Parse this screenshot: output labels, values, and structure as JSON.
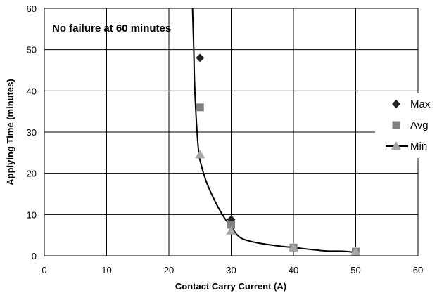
{
  "chart_data": {
    "type": "scatter",
    "xlabel": "Contact Carry Current (A)",
    "ylabel": "Applying Time (minutes)",
    "xlim": [
      0,
      60
    ],
    "ylim": [
      0,
      60
    ],
    "xticks": [
      "0",
      "10",
      "20",
      "30",
      "40",
      "50",
      "60"
    ],
    "yticks": [
      "0",
      "10",
      "20",
      "30",
      "40",
      "50",
      "60"
    ],
    "grid": true,
    "legend_position": "right",
    "annotation": "No failure at 60 minutes",
    "series": [
      {
        "name": "Max",
        "marker": "diamond",
        "color": "#202020",
        "points": [
          [
            25,
            48
          ],
          [
            30,
            8.8
          ],
          [
            40,
            2
          ],
          [
            50,
            1
          ]
        ]
      },
      {
        "name": "Avg",
        "marker": "square",
        "color": "#808080",
        "points": [
          [
            25,
            36
          ],
          [
            30,
            7.5
          ],
          [
            40,
            2
          ],
          [
            50,
            1
          ]
        ]
      },
      {
        "name": "Min",
        "marker": "triangle",
        "color": "#a6a6a6",
        "points": [
          [
            25,
            24.5
          ],
          [
            30,
            6
          ],
          [
            40,
            2
          ],
          [
            50,
            1
          ]
        ]
      }
    ],
    "curve": {
      "legend_series": "Min",
      "color": "#000000",
      "points": [
        [
          23.7,
          68
        ],
        [
          23.8,
          60
        ],
        [
          24,
          50
        ],
        [
          24.1,
          43
        ],
        [
          24.4,
          33
        ],
        [
          24.8,
          25
        ],
        [
          25.2,
          22
        ],
        [
          26,
          18
        ],
        [
          27,
          14.5
        ],
        [
          28,
          11.5
        ],
        [
          29,
          9
        ],
        [
          30,
          7
        ],
        [
          31,
          5
        ],
        [
          32,
          4
        ],
        [
          34,
          3.2
        ],
        [
          36,
          2.7
        ],
        [
          38,
          2.3
        ],
        [
          40,
          2
        ],
        [
          45,
          1.2
        ],
        [
          48,
          1.1
        ],
        [
          50,
          0.8
        ]
      ]
    }
  }
}
